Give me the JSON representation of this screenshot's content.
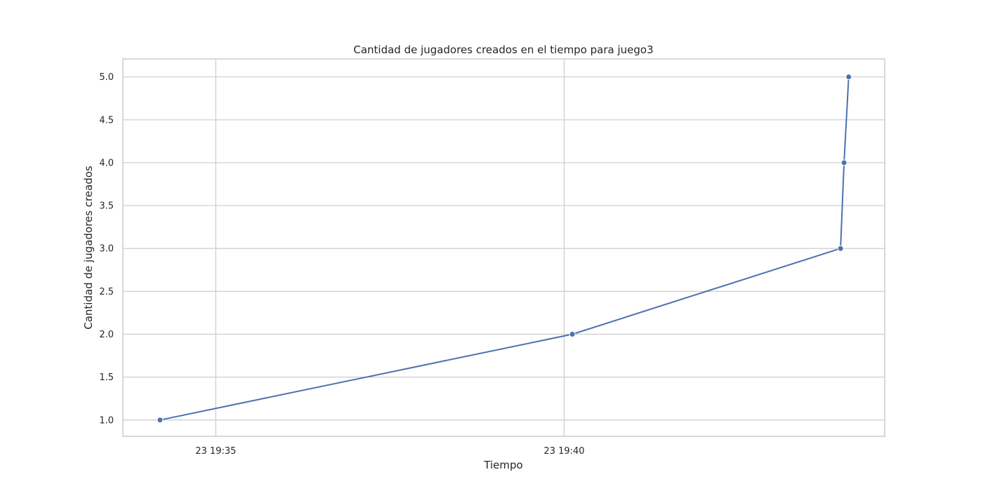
{
  "chart_data": {
    "type": "line",
    "title": "Cantidad de jugadores creados en el tiempo para juego3",
    "xlabel": "Tiempo",
    "ylabel": "Cantidad de jugadores creados",
    "x_scale": "time",
    "xlim": [
      "2000-01-23T19:33:40",
      "2000-01-23T19:44:36"
    ],
    "ylim": [
      0.81,
      5.21
    ],
    "y_ticks": [
      1.0,
      1.5,
      2.0,
      2.5,
      3.0,
      3.5,
      4.0,
      4.5,
      5.0
    ],
    "y_tick_labels": [
      "1.0",
      "1.5",
      "2.0",
      "2.5",
      "3.0",
      "3.5",
      "4.0",
      "4.5",
      "5.0"
    ],
    "x_ticks": [
      "2000-01-23T19:35:00",
      "2000-01-23T19:40:00"
    ],
    "x_tick_labels": [
      "23 19:35",
      "23 19:40"
    ],
    "grid": true,
    "series": [
      {
        "color": "#4c72b0",
        "points": [
          {
            "x": "2000-01-23T19:34:12",
            "y": 1
          },
          {
            "x": "2000-01-23T19:40:07",
            "y": 2
          },
          {
            "x": "2000-01-23T19:43:58",
            "y": 3
          },
          {
            "x": "2000-01-23T19:44:01",
            "y": 4
          },
          {
            "x": "2000-01-23T19:44:05",
            "y": 5
          }
        ]
      }
    ]
  }
}
